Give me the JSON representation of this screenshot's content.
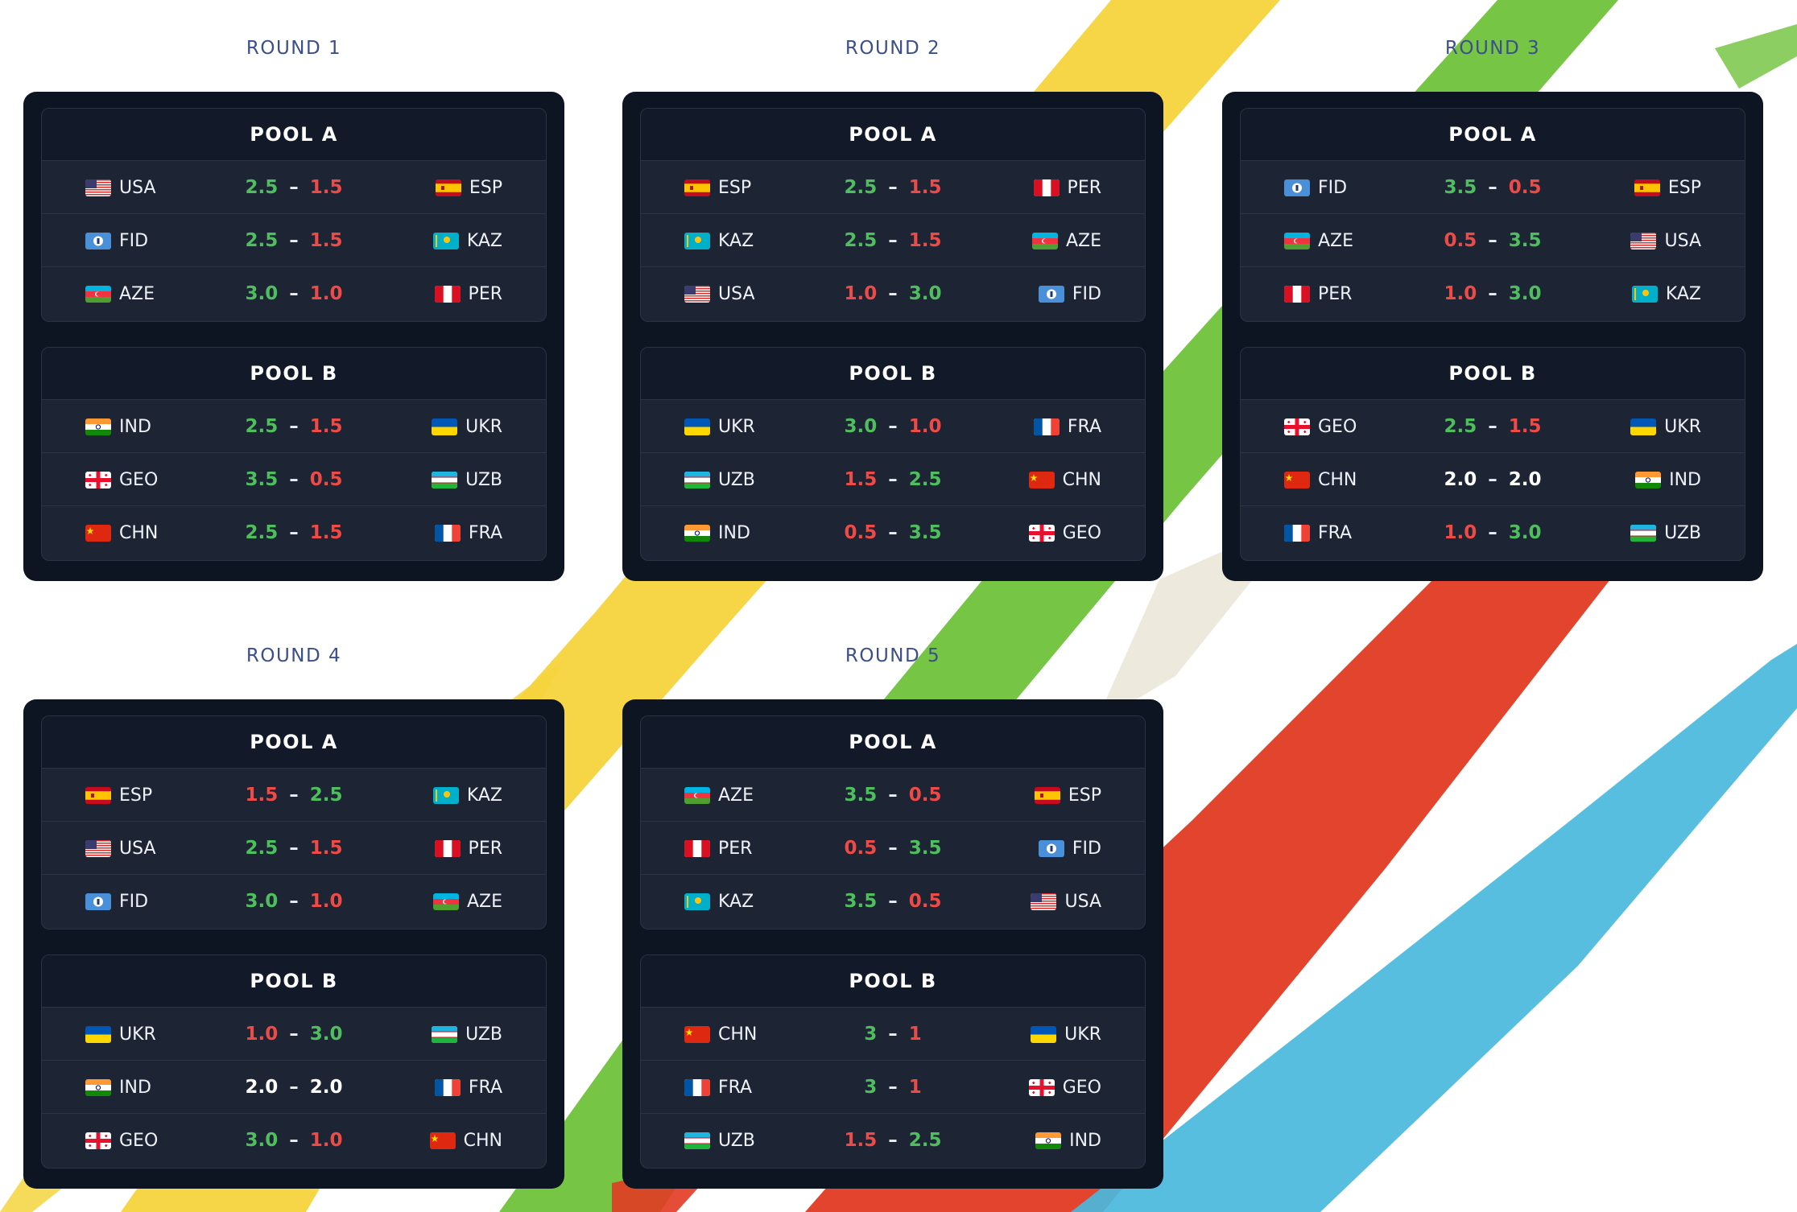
{
  "colors": {
    "win": "#4fbf5e",
    "loss": "#ee4a46",
    "draw": "#ffffff",
    "round_title": "#3b4f8a",
    "panel": "#0d1422"
  },
  "rounds": [
    {
      "title": "ROUND 1",
      "pools": [
        {
          "name": "POOL A",
          "matches": [
            {
              "home": "USA",
              "home_flag": "usa-flag-icon",
              "home_score": "2.5",
              "away_score": "1.5",
              "away": "ESP",
              "away_flag": "esp-flag-icon"
            },
            {
              "home": "FID",
              "home_flag": "fid-flag-icon",
              "home_score": "2.5",
              "away_score": "1.5",
              "away": "KAZ",
              "away_flag": "kaz-flag-icon"
            },
            {
              "home": "AZE",
              "home_flag": "aze-flag-icon",
              "home_score": "3.0",
              "away_score": "1.0",
              "away": "PER",
              "away_flag": "per-flag-icon"
            }
          ]
        },
        {
          "name": "POOL B",
          "matches": [
            {
              "home": "IND",
              "home_flag": "ind-flag-icon",
              "home_score": "2.5",
              "away_score": "1.5",
              "away": "UKR",
              "away_flag": "ukr-flag-icon"
            },
            {
              "home": "GEO",
              "home_flag": "geo-flag-icon",
              "home_score": "3.5",
              "away_score": "0.5",
              "away": "UZB",
              "away_flag": "uzb-flag-icon"
            },
            {
              "home": "CHN",
              "home_flag": "chn-flag-icon",
              "home_score": "2.5",
              "away_score": "1.5",
              "away": "FRA",
              "away_flag": "fra-flag-icon"
            }
          ]
        }
      ]
    },
    {
      "title": "ROUND 2",
      "pools": [
        {
          "name": "POOL A",
          "matches": [
            {
              "home": "ESP",
              "home_flag": "esp-flag-icon",
              "home_score": "2.5",
              "away_score": "1.5",
              "away": "PER",
              "away_flag": "per-flag-icon"
            },
            {
              "home": "KAZ",
              "home_flag": "kaz-flag-icon",
              "home_score": "2.5",
              "away_score": "1.5",
              "away": "AZE",
              "away_flag": "aze-flag-icon"
            },
            {
              "home": "USA",
              "home_flag": "usa-flag-icon",
              "home_score": "1.0",
              "away_score": "3.0",
              "away": "FID",
              "away_flag": "fid-flag-icon"
            }
          ]
        },
        {
          "name": "POOL B",
          "matches": [
            {
              "home": "UKR",
              "home_flag": "ukr-flag-icon",
              "home_score": "3.0",
              "away_score": "1.0",
              "away": "FRA",
              "away_flag": "fra-flag-icon"
            },
            {
              "home": "UZB",
              "home_flag": "uzb-flag-icon",
              "home_score": "1.5",
              "away_score": "2.5",
              "away": "CHN",
              "away_flag": "chn-flag-icon"
            },
            {
              "home": "IND",
              "home_flag": "ind-flag-icon",
              "home_score": "0.5",
              "away_score": "3.5",
              "away": "GEO",
              "away_flag": "geo-flag-icon"
            }
          ]
        }
      ]
    },
    {
      "title": "ROUND 3",
      "pools": [
        {
          "name": "POOL A",
          "matches": [
            {
              "home": "FID",
              "home_flag": "fid-flag-icon",
              "home_score": "3.5",
              "away_score": "0.5",
              "away": "ESP",
              "away_flag": "esp-flag-icon"
            },
            {
              "home": "AZE",
              "home_flag": "aze-flag-icon",
              "home_score": "0.5",
              "away_score": "3.5",
              "away": "USA",
              "away_flag": "usa-flag-icon"
            },
            {
              "home": "PER",
              "home_flag": "per-flag-icon",
              "home_score": "1.0",
              "away_score": "3.0",
              "away": "KAZ",
              "away_flag": "kaz-flag-icon"
            }
          ]
        },
        {
          "name": "POOL B",
          "matches": [
            {
              "home": "GEO",
              "home_flag": "geo-flag-icon",
              "home_score": "2.5",
              "away_score": "1.5",
              "away": "UKR",
              "away_flag": "ukr-flag-icon"
            },
            {
              "home": "CHN",
              "home_flag": "chn-flag-icon",
              "home_score": "2.0",
              "away_score": "2.0",
              "away": "IND",
              "away_flag": "ind-flag-icon"
            },
            {
              "home": "FRA",
              "home_flag": "fra-flag-icon",
              "home_score": "1.0",
              "away_score": "3.0",
              "away": "UZB",
              "away_flag": "uzb-flag-icon"
            }
          ]
        }
      ]
    },
    {
      "title": "ROUND 4",
      "pools": [
        {
          "name": "POOL A",
          "matches": [
            {
              "home": "ESP",
              "home_flag": "esp-flag-icon",
              "home_score": "1.5",
              "away_score": "2.5",
              "away": "KAZ",
              "away_flag": "kaz-flag-icon"
            },
            {
              "home": "USA",
              "home_flag": "usa-flag-icon",
              "home_score": "2.5",
              "away_score": "1.5",
              "away": "PER",
              "away_flag": "per-flag-icon"
            },
            {
              "home": "FID",
              "home_flag": "fid-flag-icon",
              "home_score": "3.0",
              "away_score": "1.0",
              "away": "AZE",
              "away_flag": "aze-flag-icon"
            }
          ]
        },
        {
          "name": "POOL B",
          "matches": [
            {
              "home": "UKR",
              "home_flag": "ukr-flag-icon",
              "home_score": "1.0",
              "away_score": "3.0",
              "away": "UZB",
              "away_flag": "uzb-flag-icon"
            },
            {
              "home": "IND",
              "home_flag": "ind-flag-icon",
              "home_score": "2.0",
              "away_score": "2.0",
              "away": "FRA",
              "away_flag": "fra-flag-icon"
            },
            {
              "home": "GEO",
              "home_flag": "geo-flag-icon",
              "home_score": "3.0",
              "away_score": "1.0",
              "away": "CHN",
              "away_flag": "chn-flag-icon"
            }
          ]
        }
      ]
    },
    {
      "title": "ROUND 5",
      "pools": [
        {
          "name": "POOL A",
          "matches": [
            {
              "home": "AZE",
              "home_flag": "aze-flag-icon",
              "home_score": "3.5",
              "away_score": "0.5",
              "away": "ESP",
              "away_flag": "esp-flag-icon"
            },
            {
              "home": "PER",
              "home_flag": "per-flag-icon",
              "home_score": "0.5",
              "away_score": "3.5",
              "away": "FID",
              "away_flag": "fid-flag-icon"
            },
            {
              "home": "KAZ",
              "home_flag": "kaz-flag-icon",
              "home_score": "3.5",
              "away_score": "0.5",
              "away": "USA",
              "away_flag": "usa-flag-icon"
            }
          ]
        },
        {
          "name": "POOL B",
          "matches": [
            {
              "home": "CHN",
              "home_flag": "chn-flag-icon",
              "home_score": "3",
              "away_score": "1",
              "away": "UKR",
              "away_flag": "ukr-flag-icon"
            },
            {
              "home": "FRA",
              "home_flag": "fra-flag-icon",
              "home_score": "3",
              "away_score": "1",
              "away": "GEO",
              "away_flag": "geo-flag-icon"
            },
            {
              "home": "UZB",
              "home_flag": "uzb-flag-icon",
              "home_score": "1.5",
              "away_score": "2.5",
              "away": "IND",
              "away_flag": "ind-flag-icon"
            }
          ]
        }
      ]
    }
  ]
}
